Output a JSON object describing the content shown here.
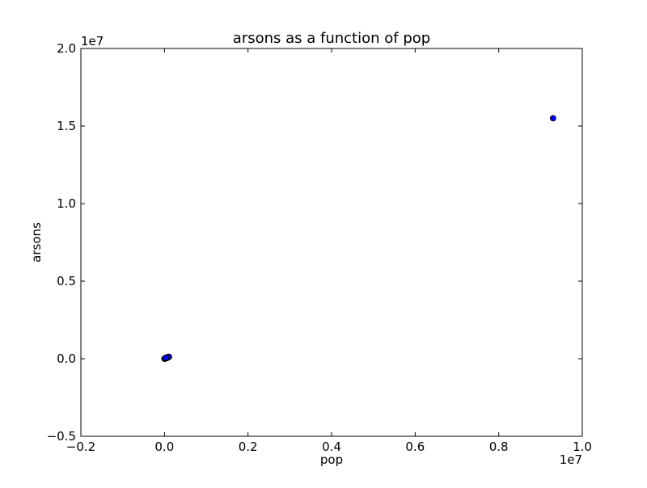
{
  "chart_data": {
    "type": "scatter",
    "title": "arsons as a function of pop",
    "xlabel": "pop",
    "ylabel": "arsons",
    "xlim": [
      -0.2,
      1.0
    ],
    "ylim": [
      -0.5,
      2.0
    ],
    "x_offset_label": "1e7",
    "y_offset_label": "1e7",
    "x_ticks": [
      -0.2,
      0.0,
      0.2,
      0.4,
      0.6,
      0.8,
      1.0
    ],
    "x_tick_labels": [
      "−0.2",
      "0.0",
      "0.2",
      "0.4",
      "0.6",
      "0.8",
      "1.0"
    ],
    "y_ticks": [
      -0.5,
      0.0,
      0.5,
      1.0,
      1.5,
      2.0
    ],
    "y_tick_labels": [
      "−0.5",
      "0.0",
      "0.5",
      "1.0",
      "1.5",
      "2.0"
    ],
    "grid": false,
    "legend": "none",
    "marker_color": "#0000ff",
    "marker_edge_color": "#000000",
    "points": [
      {
        "x": 0.0002,
        "y": 0.0002
      },
      {
        "x": 0.0004,
        "y": 0.0005
      },
      {
        "x": 0.0006,
        "y": 0.0007
      },
      {
        "x": 0.0008,
        "y": 0.001
      },
      {
        "x": 0.001,
        "y": 0.0012
      },
      {
        "x": 0.0012,
        "y": 0.0016
      },
      {
        "x": 0.0015,
        "y": 0.002
      },
      {
        "x": 0.0018,
        "y": 0.0024
      },
      {
        "x": 0.0021,
        "y": 0.0028
      },
      {
        "x": 0.0024,
        "y": 0.0032
      },
      {
        "x": 0.0027,
        "y": 0.0036
      },
      {
        "x": 0.003,
        "y": 0.004
      },
      {
        "x": 0.0034,
        "y": 0.0045
      },
      {
        "x": 0.0038,
        "y": 0.005
      },
      {
        "x": 0.0042,
        "y": 0.0055
      },
      {
        "x": 0.0046,
        "y": 0.006
      },
      {
        "x": 0.005,
        "y": 0.0065
      },
      {
        "x": 0.0055,
        "y": 0.007
      },
      {
        "x": 0.006,
        "y": 0.0076
      },
      {
        "x": 0.0065,
        "y": 0.0082
      },
      {
        "x": 0.007,
        "y": 0.0088
      },
      {
        "x": 0.0076,
        "y": 0.0094
      },
      {
        "x": 0.0082,
        "y": 0.01
      },
      {
        "x": 0.0088,
        "y": 0.0106
      },
      {
        "x": 0.0095,
        "y": 0.0112
      },
      {
        "x": 0.0102,
        "y": 0.0118
      },
      {
        "x": 0.011,
        "y": 0.0124
      },
      {
        "x": 0.003,
        "y": 0.002
      },
      {
        "x": 0.005,
        "y": 0.004
      },
      {
        "x": 0.007,
        "y": 0.006
      },
      {
        "x": 0.002,
        "y": 0.004
      },
      {
        "x": 0.004,
        "y": 0.007
      },
      {
        "x": 0.93,
        "y": 1.55
      }
    ]
  }
}
